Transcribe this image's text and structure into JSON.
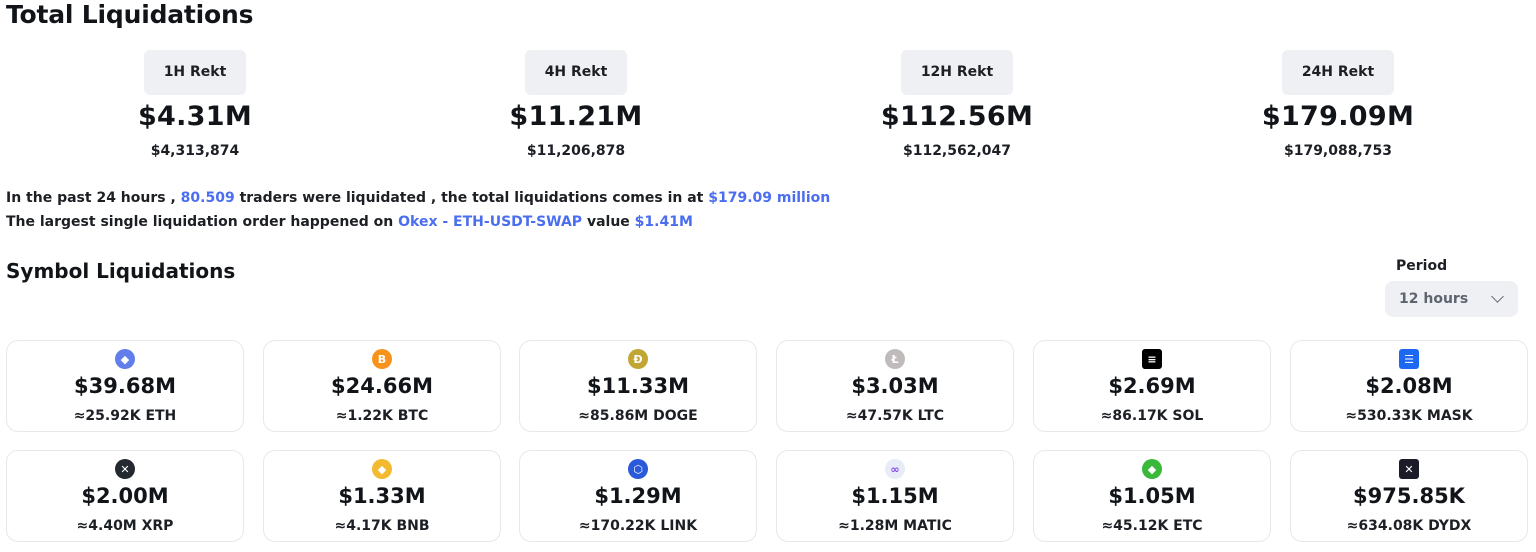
{
  "header": {
    "title": "Total Liquidations"
  },
  "stats": [
    {
      "label": "1H Rekt",
      "value": "$4.31M",
      "exact": "$4,313,874"
    },
    {
      "label": "4H Rekt",
      "value": "$11.21M",
      "exact": "$11,206,878"
    },
    {
      "label": "12H Rekt",
      "value": "$112.56M",
      "exact": "$112,562,047"
    },
    {
      "label": "24H Rekt",
      "value": "$179.09M",
      "exact": "$179,088,753"
    }
  ],
  "summary": {
    "line1": {
      "part1": "In the past 24 hours , ",
      "traders": "80.509",
      "part2": " traders were liquidated , the total liquidations comes in at ",
      "total": "$179.09 million"
    },
    "line2": {
      "part1": "The largest single liquidation order happened on ",
      "order": "Okex - ETH-USDT-SWAP",
      "part2": " value ",
      "value": "$1.41M"
    }
  },
  "symbols": {
    "title": "Symbol Liquidations",
    "period_label": "Period",
    "period_value": "12 hours",
    "items": [
      {
        "icon": "eth-icon",
        "glyph": "◆",
        "color": "#627eea",
        "amount": "$39.68M",
        "sub": "≈25.92K ETH"
      },
      {
        "icon": "btc-icon",
        "glyph": "B",
        "color": "#f7931a",
        "amount": "$24.66M",
        "sub": "≈1.22K BTC"
      },
      {
        "icon": "doge-icon",
        "glyph": "Ð",
        "color": "#c2a633",
        "amount": "$11.33M",
        "sub": "≈85.86M DOGE"
      },
      {
        "icon": "ltc-icon",
        "glyph": "Ł",
        "color": "#bfbbbb",
        "amount": "$3.03M",
        "sub": "≈47.57K LTC"
      },
      {
        "icon": "sol-icon",
        "glyph": "≡",
        "color": "#000000",
        "amount": "$2.69M",
        "sub": "≈86.17K SOL"
      },
      {
        "icon": "mask-icon",
        "glyph": "☰",
        "color": "#1c68f3",
        "amount": "$2.08M",
        "sub": "≈530.33K MASK"
      },
      {
        "icon": "xrp-icon",
        "glyph": "✕",
        "color": "#23292f",
        "amount": "$2.00M",
        "sub": "≈4.40M XRP"
      },
      {
        "icon": "bnb-icon",
        "glyph": "◆",
        "color": "#f3ba2f",
        "amount": "$1.33M",
        "sub": "≈4.17K BNB"
      },
      {
        "icon": "link-icon",
        "glyph": "⬡",
        "color": "#2a5ada",
        "amount": "$1.29M",
        "sub": "≈170.22K LINK"
      },
      {
        "icon": "matic-icon",
        "glyph": "∞",
        "color": "#e8ecf8",
        "amount": "$1.15M",
        "sub": "≈1.28M MATIC"
      },
      {
        "icon": "etc-icon",
        "glyph": "◆",
        "color": "#3ab83a",
        "amount": "$1.05M",
        "sub": "≈45.12K ETC"
      },
      {
        "icon": "dydx-icon",
        "glyph": "✕",
        "color": "#1c1c28",
        "amount": "$975.85K",
        "sub": "≈634.08K DYDX"
      }
    ]
  }
}
